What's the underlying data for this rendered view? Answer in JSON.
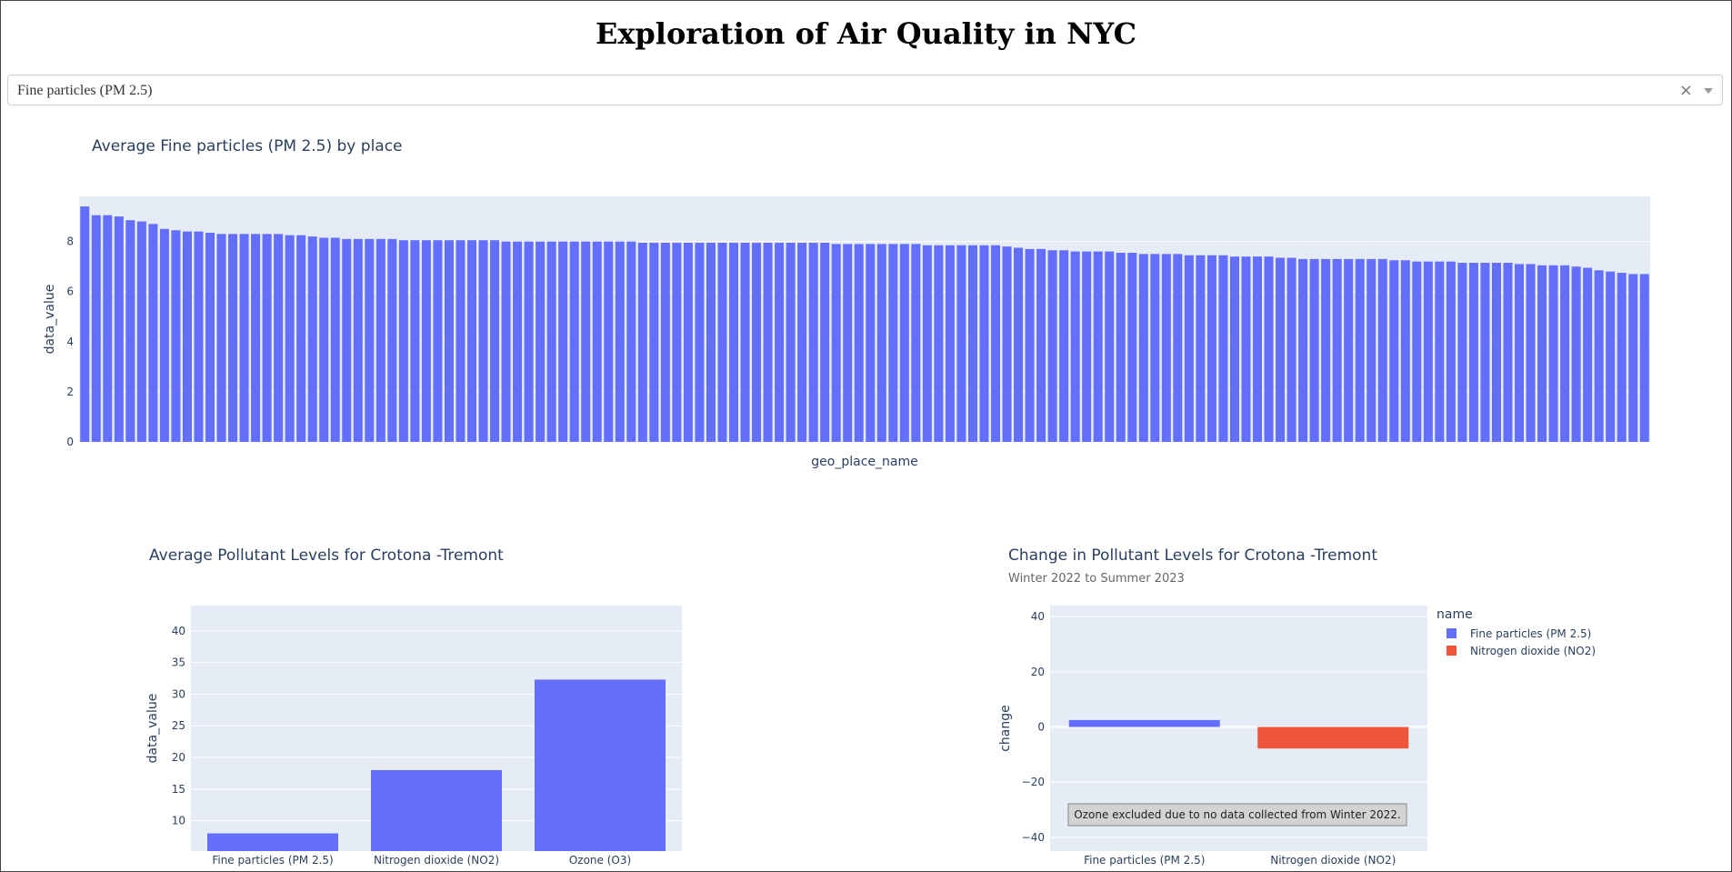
{
  "page_title": "Exploration of Air Quality in NYC",
  "dropdown": {
    "value": "Fine particles (PM 2.5)",
    "clear_icon": "×"
  },
  "chart_data": [
    {
      "type": "bar",
      "title": "Average Fine particles (PM 2.5) by place",
      "xlabel": "geo_place_name",
      "ylabel": "data_value",
      "ylim": [
        0,
        9.8
      ],
      "yticks": [
        0,
        2,
        4,
        6,
        8
      ],
      "grid": true,
      "color": "#636efa",
      "values": [
        9.4,
        9.05,
        9.05,
        9.0,
        8.85,
        8.8,
        8.7,
        8.5,
        8.45,
        8.4,
        8.4,
        8.35,
        8.3,
        8.3,
        8.3,
        8.3,
        8.3,
        8.3,
        8.25,
        8.25,
        8.2,
        8.15,
        8.15,
        8.1,
        8.1,
        8.1,
        8.1,
        8.1,
        8.05,
        8.05,
        8.05,
        8.05,
        8.05,
        8.05,
        8.05,
        8.05,
        8.05,
        8.0,
        8.0,
        8.0,
        8.0,
        8.0,
        8.0,
        8.0,
        8.0,
        8.0,
        8.0,
        8.0,
        8.0,
        7.95,
        7.95,
        7.95,
        7.95,
        7.95,
        7.95,
        7.95,
        7.95,
        7.95,
        7.95,
        7.95,
        7.95,
        7.95,
        7.95,
        7.95,
        7.95,
        7.95,
        7.9,
        7.9,
        7.9,
        7.9,
        7.9,
        7.9,
        7.9,
        7.9,
        7.85,
        7.85,
        7.85,
        7.85,
        7.85,
        7.85,
        7.85,
        7.8,
        7.75,
        7.7,
        7.7,
        7.65,
        7.65,
        7.6,
        7.6,
        7.6,
        7.6,
        7.55,
        7.55,
        7.5,
        7.5,
        7.5,
        7.5,
        7.45,
        7.45,
        7.45,
        7.45,
        7.4,
        7.4,
        7.4,
        7.4,
        7.35,
        7.35,
        7.3,
        7.3,
        7.3,
        7.3,
        7.3,
        7.3,
        7.3,
        7.3,
        7.25,
        7.25,
        7.2,
        7.2,
        7.2,
        7.2,
        7.15,
        7.15,
        7.15,
        7.15,
        7.15,
        7.1,
        7.1,
        7.05,
        7.05,
        7.05,
        7.0,
        6.95,
        6.85,
        6.8,
        6.75,
        6.7,
        6.7
      ]
    },
    {
      "type": "bar",
      "title": "Average Pollutant Levels for Crotona -Tremont",
      "xlabel": "",
      "ylabel": "data_value",
      "ylim": [
        5.2,
        44
      ],
      "yticks": [
        10,
        15,
        20,
        25,
        30,
        35,
        40
      ],
      "grid": true,
      "color": "#636efa",
      "categories": [
        "Fine particles (PM 2.5)",
        "Nitrogen dioxide (NO2)",
        "Ozone (O3)"
      ],
      "values": [
        8.0,
        18.0,
        32.3
      ]
    },
    {
      "type": "bar",
      "title": "Change in Pollutant Levels for Crotona -Tremont",
      "subtitle": "Winter 2022 to Summer 2023",
      "xlabel": "",
      "ylabel": "change",
      "ylim": [
        -45,
        44
      ],
      "yticks": [
        -40,
        -20,
        0,
        20,
        40
      ],
      "grid": true,
      "categories": [
        "Fine particles (PM 2.5)",
        "Nitrogen dioxide (NO2)"
      ],
      "series": [
        {
          "name": "Fine particles (PM 2.5)",
          "color": "#636efa",
          "values": [
            2.5,
            null
          ]
        },
        {
          "name": "Nitrogen dioxide (NO2)",
          "color": "#ef553b",
          "values": [
            null,
            -7.8
          ]
        }
      ],
      "legend_title": "name",
      "legend_position": "right",
      "annotation": "Ozone excluded due to no data collected from Winter 2022."
    }
  ]
}
